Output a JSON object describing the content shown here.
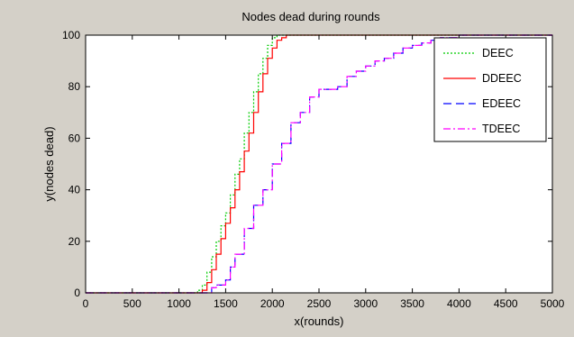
{
  "chart_data": {
    "type": "line",
    "title": "Nodes dead during rounds",
    "xlabel": "x(rounds)",
    "ylabel": "y(nodes dead)",
    "xlim": [
      0,
      5000
    ],
    "ylim": [
      0,
      100
    ],
    "xticks": [
      0,
      500,
      1000,
      1500,
      2000,
      2500,
      3000,
      3500,
      4000,
      4500,
      5000
    ],
    "yticks": [
      0,
      20,
      40,
      60,
      80,
      100
    ],
    "grid": false,
    "legend_position": "top-right",
    "series": [
      {
        "name": "DEEC",
        "color": "#00cc00",
        "style": "dotted",
        "x": [
          0,
          1150,
          1200,
          1250,
          1300,
          1350,
          1400,
          1450,
          1500,
          1550,
          1600,
          1650,
          1700,
          1750,
          1800,
          1850,
          1900,
          1950,
          2000,
          2050,
          2100,
          2150,
          2200,
          5000
        ],
        "y": [
          0,
          0,
          1,
          3,
          8,
          14,
          20,
          26,
          31,
          38,
          46,
          52,
          62,
          70,
          78,
          85,
          91,
          96,
          99,
          100,
          100,
          100,
          100,
          100
        ]
      },
      {
        "name": "DDEEC",
        "color": "#ff0000",
        "style": "solid",
        "x": [
          0,
          1200,
          1250,
          1300,
          1350,
          1400,
          1450,
          1500,
          1550,
          1600,
          1650,
          1700,
          1750,
          1800,
          1850,
          1900,
          1950,
          2000,
          2050,
          2100,
          2150,
          2200,
          5000
        ],
        "y": [
          0,
          0,
          1,
          4,
          9,
          15,
          21,
          27,
          33,
          40,
          47,
          55,
          62,
          70,
          78,
          85,
          91,
          95,
          98,
          99,
          100,
          100,
          100
        ]
      },
      {
        "name": "EDEEC",
        "color": "#0000ff",
        "style": "dashed",
        "x": [
          0,
          1300,
          1350,
          1400,
          1450,
          1500,
          1550,
          1600,
          1700,
          1800,
          1900,
          2000,
          2100,
          2200,
          2300,
          2400,
          2500,
          2600,
          2700,
          2800,
          2900,
          3000,
          3100,
          3200,
          3300,
          3400,
          3500,
          3600,
          3700,
          3800,
          3900,
          4000,
          4100,
          4200,
          5000
        ],
        "y": [
          0,
          0,
          2,
          3,
          3,
          5,
          10,
          15,
          25,
          34,
          40,
          50,
          58,
          66,
          70,
          76,
          79,
          79,
          80,
          84,
          86,
          88,
          90,
          91,
          93,
          95,
          96,
          97,
          98,
          99,
          99,
          100,
          100,
          100,
          100
        ]
      },
      {
        "name": "TDEEC",
        "color": "#ff00ff",
        "style": "dashdot",
        "x": [
          0,
          1300,
          1350,
          1400,
          1450,
          1500,
          1550,
          1600,
          1700,
          1800,
          1900,
          2000,
          2100,
          2200,
          2300,
          2400,
          2500,
          2600,
          2700,
          2800,
          2900,
          3000,
          3100,
          3200,
          3300,
          3400,
          3500,
          3600,
          3700,
          3800,
          3900,
          4000,
          4100,
          4200,
          5000
        ],
        "y": [
          0,
          0,
          2,
          3,
          3,
          5,
          10,
          15,
          25,
          34,
          40,
          50,
          58,
          66,
          70,
          76,
          79,
          79,
          80,
          84,
          86,
          88,
          90,
          91,
          93,
          95,
          96,
          97,
          98,
          99,
          99,
          100,
          100,
          100,
          100
        ]
      }
    ]
  }
}
